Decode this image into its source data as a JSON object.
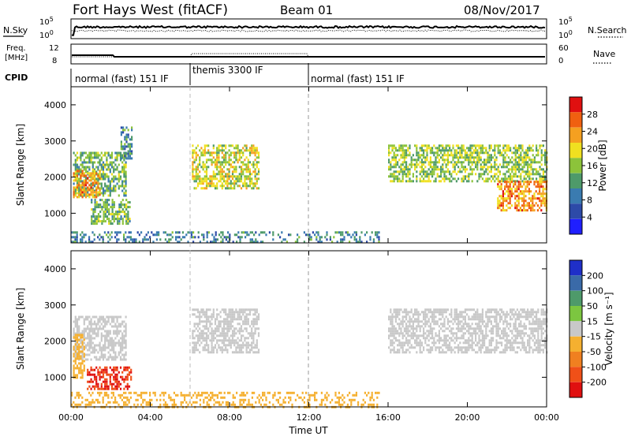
{
  "header": {
    "station": "Fort Hays West (fitACF)",
    "beam": "Beam 01",
    "date": "08/Nov/2017"
  },
  "noise_panel": {
    "left_label": "N.Sky",
    "left_ticks": [
      "10^5",
      "10^0"
    ],
    "right_label": "N.Search",
    "right_ticks": [
      "10^5",
      "10^0"
    ]
  },
  "freq_panel": {
    "left_label_1": "Freq.",
    "left_label_2": "[MHz]",
    "left_ticks": [
      "12",
      "8"
    ],
    "right_label": "Nave",
    "right_ticks": [
      "60",
      "0"
    ]
  },
  "cpid": {
    "label": "CPID",
    "segments": [
      "normal (fast) 151 IF",
      "themis 3300 IF",
      "normal (fast) 151 IF"
    ]
  },
  "x_axis": {
    "label": "Time UT",
    "ticks": [
      "00:00",
      "04:00",
      "08:00",
      "12:00",
      "16:00",
      "20:00",
      "00:00"
    ]
  },
  "chart_data": [
    {
      "type": "heatmap",
      "name": "power",
      "ylabel": "Slant Range [km]",
      "y_ticks": [
        1000,
        2000,
        3000,
        4000
      ],
      "ylim": [
        180,
        4500
      ],
      "xlim_hours": [
        0,
        24
      ],
      "colorbar": {
        "label": "Power [dB]",
        "ticks": [
          "4",
          "8",
          "12",
          "16",
          "20",
          "24",
          "28"
        ],
        "colors": [
          "#1f1fff",
          "#2d4aa8",
          "#3a7bb0",
          "#4e9a6a",
          "#8cc33a",
          "#f0e020",
          "#f5a020",
          "#f06010",
          "#e01010"
        ],
        "range": [
          0,
          32
        ]
      },
      "regions": [
        {
          "start_h": 0.1,
          "end_h": 2.8,
          "range_lo": 1500,
          "range_hi": 2700,
          "value": 14
        },
        {
          "start_h": 0.1,
          "end_h": 1.5,
          "range_lo": 1450,
          "range_hi": 2200,
          "value": 24
        },
        {
          "start_h": 1.0,
          "end_h": 3.0,
          "range_lo": 700,
          "range_hi": 1400,
          "value": 14
        },
        {
          "start_h": 2.5,
          "end_h": 3.1,
          "range_lo": 2500,
          "range_hi": 3400,
          "value": 10
        },
        {
          "start_h": 6.1,
          "end_h": 9.5,
          "range_lo": 1700,
          "range_hi": 2900,
          "value": 18
        },
        {
          "start_h": 16.0,
          "end_h": 24.0,
          "range_lo": 1900,
          "range_hi": 2900,
          "value": 16
        },
        {
          "start_h": 21.5,
          "end_h": 24.0,
          "range_lo": 1100,
          "range_hi": 1900,
          "value": 24
        },
        {
          "start_h": 0.0,
          "end_h": 15.5,
          "range_lo": 200,
          "range_hi": 500,
          "value": 10
        }
      ]
    },
    {
      "type": "heatmap",
      "name": "velocity",
      "ylabel": "Slant Range [km]",
      "y_ticks": [
        1000,
        2000,
        3000,
        4000
      ],
      "ylim": [
        180,
        4500
      ],
      "xlim_hours": [
        0,
        24
      ],
      "colorbar": {
        "label": "Velocity [m s^-1]",
        "ticks": [
          "200",
          "100",
          "50",
          "15",
          "-15",
          "-50",
          "-100",
          "-200"
        ],
        "colors": [
          "#1f2fc8",
          "#3a6aa8",
          "#4e9a6a",
          "#7cc640",
          "#c8c8c8",
          "#f5b030",
          "#f08020",
          "#f05018",
          "#e01010"
        ]
      },
      "regions": [
        {
          "start_h": 0.1,
          "end_h": 2.8,
          "range_lo": 1500,
          "range_hi": 2700,
          "value": 0
        },
        {
          "start_h": 0.1,
          "end_h": 0.7,
          "range_lo": 1000,
          "range_hi": 2200,
          "value": -30
        },
        {
          "start_h": 0.8,
          "end_h": 3.0,
          "range_lo": 650,
          "range_hi": 1300,
          "value": -200
        },
        {
          "start_h": 6.1,
          "end_h": 9.5,
          "range_lo": 1700,
          "range_hi": 2900,
          "value": 0
        },
        {
          "start_h": 16.0,
          "end_h": 24.0,
          "range_lo": 1700,
          "range_hi": 2900,
          "value": 0
        },
        {
          "start_h": 0.0,
          "end_h": 15.5,
          "range_lo": 200,
          "range_hi": 600,
          "value": -30
        }
      ]
    }
  ]
}
